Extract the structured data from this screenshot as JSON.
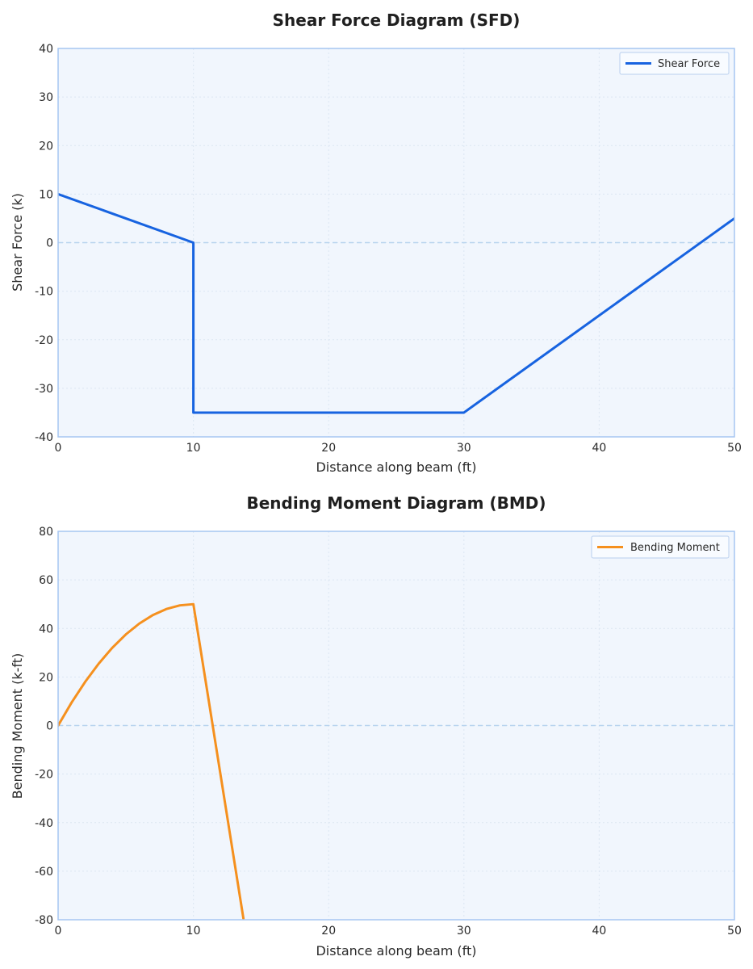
{
  "chart_data": [
    {
      "type": "line",
      "title": "Shear Force Diagram (SFD)",
      "xlabel": "Distance along beam (ft)",
      "ylabel": "Shear Force (k)",
      "xlim": [
        0,
        50
      ],
      "ylim": [
        -40,
        40
      ],
      "xticks": [
        0,
        10,
        20,
        30,
        40,
        50
      ],
      "yticks": [
        -40,
        -30,
        -20,
        -10,
        0,
        10,
        20,
        30,
        40
      ],
      "grid": true,
      "zero_line": true,
      "legend_position": "top-right",
      "series": [
        {
          "name": "Shear Force",
          "color": "#1763e0",
          "x": [
            0,
            10,
            10,
            30,
            50
          ],
          "y": [
            10,
            0,
            -35,
            -35,
            5
          ]
        }
      ]
    },
    {
      "type": "line",
      "title": "Bending Moment Diagram (BMD)",
      "xlabel": "Distance along beam (ft)",
      "ylabel": "Bending Moment (k-ft)",
      "xlim": [
        0,
        50
      ],
      "ylim": [
        -80,
        80
      ],
      "xticks": [
        0,
        10,
        20,
        30,
        40,
        50
      ],
      "yticks": [
        -80,
        -60,
        -40,
        -20,
        0,
        20,
        40,
        60,
        80
      ],
      "grid": true,
      "zero_line": true,
      "legend_position": "top-right",
      "series": [
        {
          "name": "Bending Moment",
          "color": "#f5901e",
          "x": [
            0,
            1,
            2,
            3,
            4,
            5,
            6,
            7,
            8,
            9,
            10,
            11,
            12,
            13,
            13.7
          ],
          "y": [
            0,
            9.5,
            18,
            25.5,
            32,
            37.5,
            42,
            45.5,
            48,
            49.5,
            50,
            15,
            -20,
            -55,
            -79.5
          ]
        }
      ]
    }
  ],
  "colors": {
    "plot_background": "#f1f6fd",
    "plot_border": "#a6c6f2",
    "grid": "#dce6f2",
    "zero_line": "#b7d3ee"
  }
}
